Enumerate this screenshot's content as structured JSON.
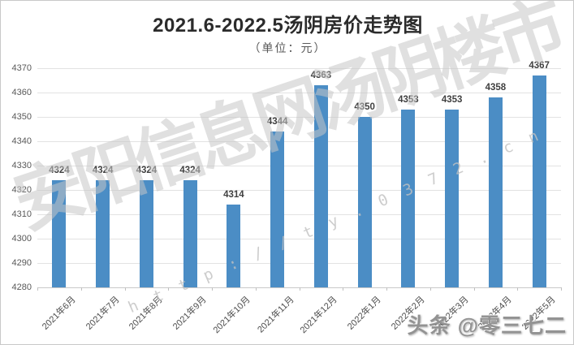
{
  "header": {
    "title": "2021.6-2022.5汤阴房价走势图",
    "subtitle": "（单位：元）"
  },
  "chart_data": {
    "type": "bar",
    "title": "2021.6-2022.5汤阴房价走势图",
    "unit_label": "（单位：元）",
    "categories": [
      "2021年6月",
      "2021年7月",
      "2021年8月",
      "2021年9月",
      "2021年10月",
      "2021年11月",
      "2021年12月",
      "2022年1月",
      "2022年2月",
      "2022年3月",
      "2022年4月",
      "2022年5月"
    ],
    "values": [
      4324,
      4324,
      4324,
      4324,
      4314,
      4344,
      4363,
      4350,
      4353,
      4353,
      4358,
      4367
    ],
    "ylim": [
      4280,
      4370
    ],
    "ytick_step": 10,
    "yticks": [
      4280,
      4290,
      4300,
      4310,
      4320,
      4330,
      4340,
      4350,
      4360,
      4370
    ],
    "grid": true,
    "legend_position": "none",
    "bar_color": "#4b8dc5",
    "gridline_color": "#e2e2e2",
    "data_labels_shown": true
  },
  "watermark": {
    "main_text": "安阳信息网汤阴楼市",
    "url_text": "http://ty.0372.cn",
    "corner_text": "头条 @零三七二"
  }
}
